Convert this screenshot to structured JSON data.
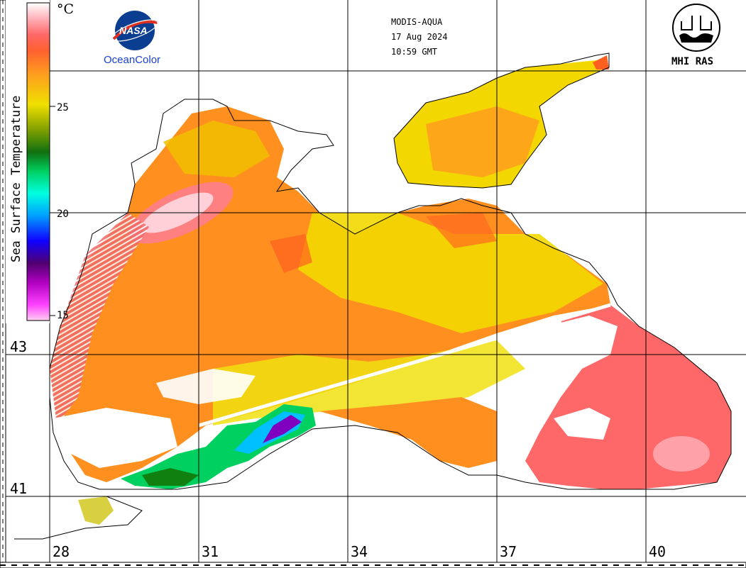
{
  "header": {
    "satellite": "MODIS-AQUA",
    "date": "17 Aug 2024",
    "time": "10:59 GMT"
  },
  "logos": {
    "nasa_text": "NASA",
    "oceancolor_label": "OceanColor",
    "mhi_label": "MHI RAS"
  },
  "colorbar": {
    "title": "Sea Surface Temperature",
    "unit": "°C",
    "ticks": [
      "25",
      "20",
      "15"
    ],
    "range": [
      15,
      30
    ],
    "colors": [
      "#ffd0f0",
      "#ff40ff",
      "#c000d0",
      "#600080",
      "#2000ff",
      "#00a0ff",
      "#00ffe0",
      "#00d060",
      "#108010",
      "#80a000",
      "#f0e000",
      "#ffa020",
      "#ff6020",
      "#ff5050",
      "#ffb0b8",
      "#ffffff"
    ]
  },
  "map": {
    "lat_labels": [
      "43",
      "41"
    ],
    "lon_labels": [
      "28",
      "31",
      "34",
      "37",
      "40"
    ],
    "region": "Black Sea"
  }
}
